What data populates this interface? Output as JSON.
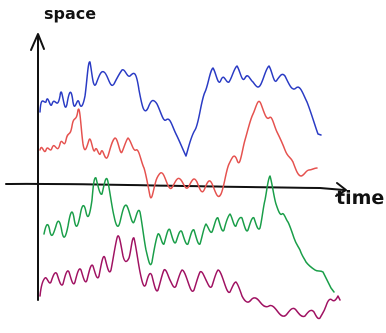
{
  "labels": {
    "y_axis": "space",
    "x_axis": "time"
  },
  "colors": {
    "axes": "#111111",
    "blue_trace": "#2a3bc4",
    "red_trace": "#e5524f",
    "green_trace": "#1a9e49",
    "purple_trace": "#a01262"
  }
}
